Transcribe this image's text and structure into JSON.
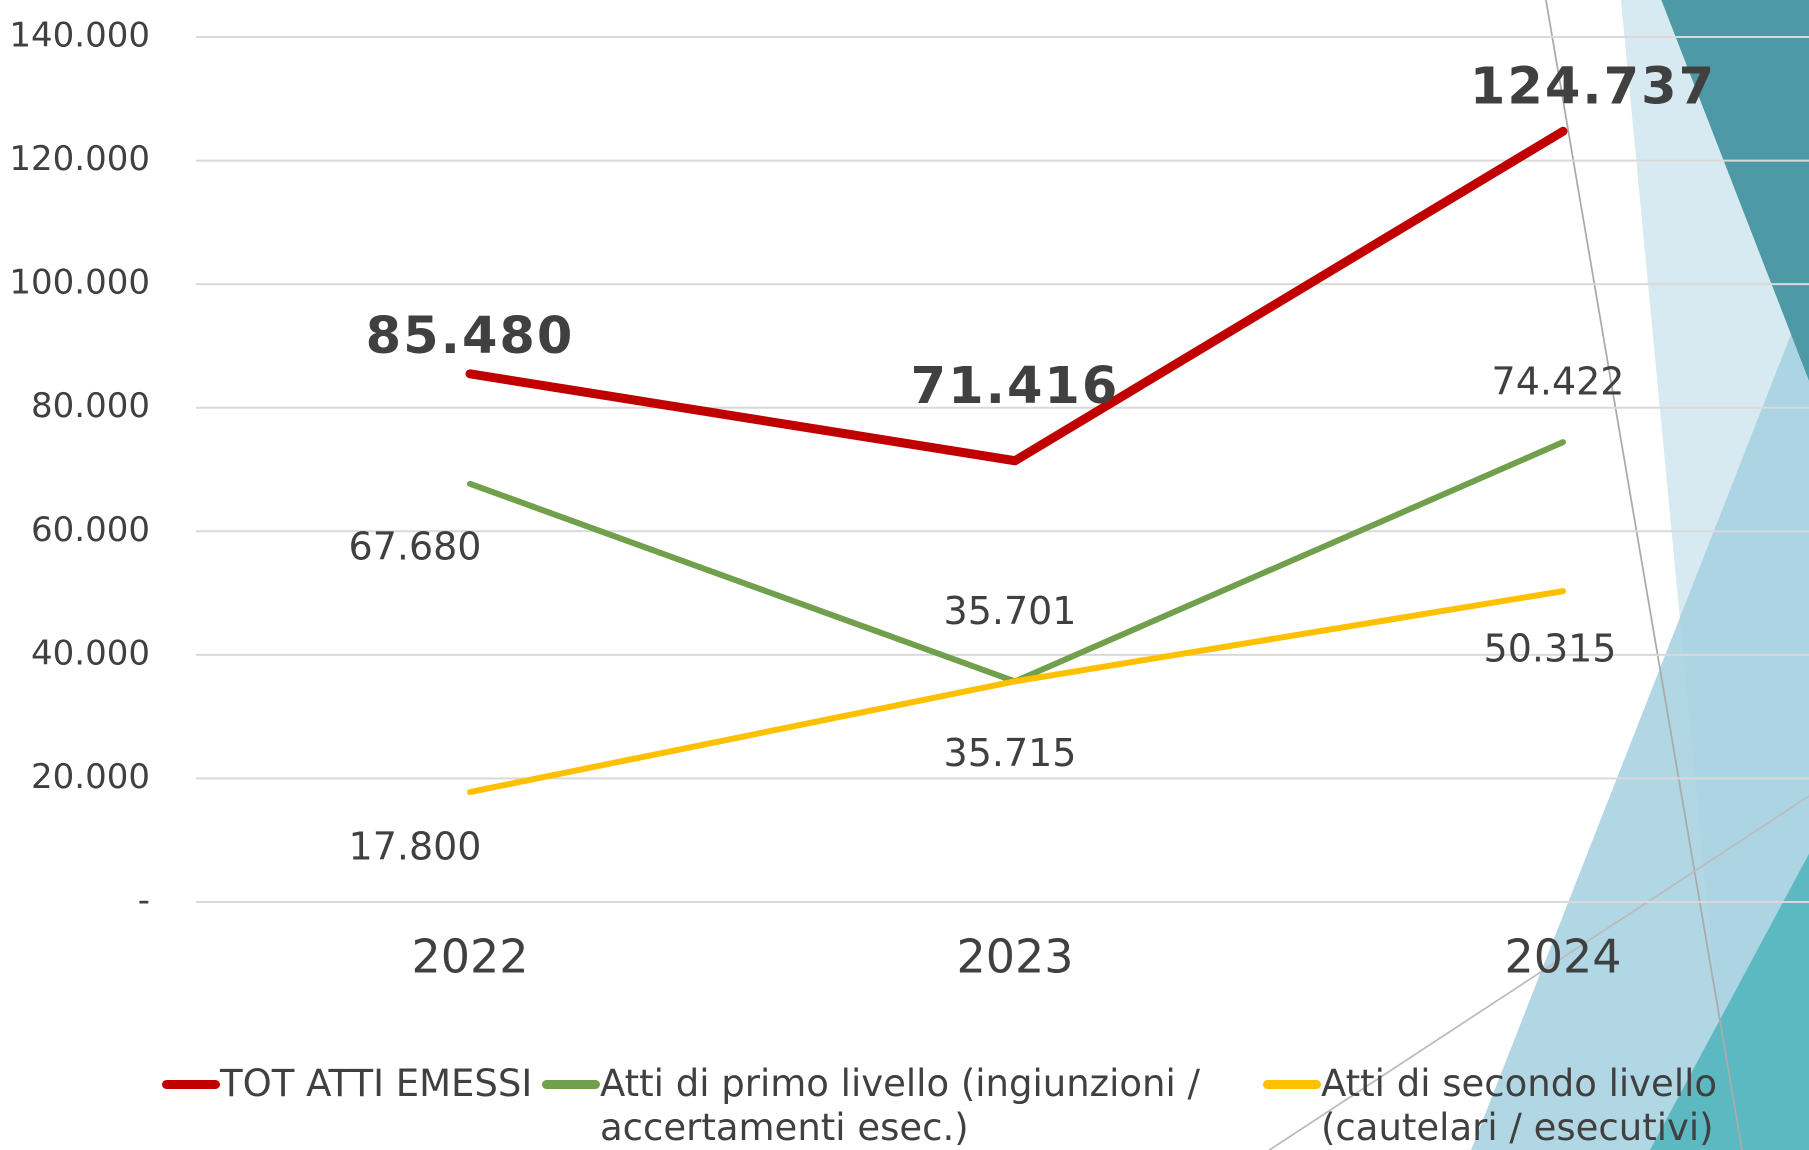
{
  "chart_data": {
    "type": "line",
    "categories": [
      "2022",
      "2023",
      "2024"
    ],
    "series": [
      {
        "name": "TOT ATTI EMESSI",
        "color": "#c00000",
        "values": [
          85480,
          71416,
          124737
        ],
        "value_labels": [
          "85.480",
          "71.416",
          "124.737"
        ]
      },
      {
        "name": "Atti di primo livello (ingiunzioni / accertamenti esec.)",
        "color": "#70a04c",
        "values": [
          67680,
          35701,
          74422
        ],
        "value_labels": [
          "67.680",
          "35.701",
          "74.422"
        ]
      },
      {
        "name": "Atti di secondo livello (cautelari / esecutivi)",
        "color": "#ffc000",
        "values": [
          17800,
          35715,
          50315
        ],
        "value_labels": [
          "17.800",
          "35.715",
          "50.315"
        ]
      }
    ],
    "ylim": [
      0,
      140000
    ],
    "yticks": [
      {
        "value": 0,
        "label": "-"
      },
      {
        "value": 20000,
        "label": "20.000"
      },
      {
        "value": 40000,
        "label": "40.000"
      },
      {
        "value": 60000,
        "label": "60.000"
      },
      {
        "value": 80000,
        "label": "80.000"
      },
      {
        "value": 100000,
        "label": "100.000"
      },
      {
        "value": 120000,
        "label": "120.000"
      },
      {
        "value": 140000,
        "label": "140.000"
      }
    ],
    "grid": true,
    "legend": "bottom"
  }
}
